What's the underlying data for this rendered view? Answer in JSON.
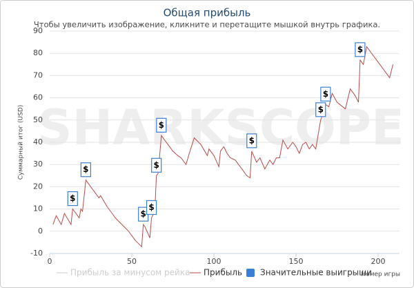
{
  "chart_data": {
    "type": "line",
    "title": "Общая прибыль",
    "subtitle": "Чтобы увеличить изображение, кликните и перетащите мышкой внутрь графика.",
    "watermark": "SHARKSCOPE",
    "y_label": "Суммарный итог (USD)",
    "x_label": "Номер игры",
    "xlim": [
      0,
      213
    ],
    "xticks": [
      0,
      50,
      100,
      150,
      200
    ],
    "ylim": [
      -10,
      90
    ],
    "yticks": [
      -10,
      0,
      10,
      20,
      30,
      40,
      50,
      60,
      70,
      80,
      90
    ],
    "grid": true,
    "series": [
      {
        "name": "Прибыль за минусом рейка",
        "color": "#cccccc",
        "hidden": true
      },
      {
        "name": "Прибыль",
        "color": "#b94a48",
        "x": [
          2,
          4,
          7,
          9,
          13,
          14,
          16,
          18,
          19,
          20,
          22,
          25,
          28,
          30,
          31,
          35,
          38,
          40,
          44,
          48,
          52,
          56,
          57,
          58,
          61,
          62,
          64,
          65,
          66,
          68,
          70,
          72,
          75,
          78,
          80,
          83,
          85,
          88,
          92,
          96,
          97,
          100,
          103,
          104,
          106,
          108,
          110,
          113,
          115,
          117,
          120,
          122,
          123,
          126,
          128,
          131,
          134,
          136,
          138,
          140,
          142,
          145,
          148,
          150,
          152,
          154,
          156,
          158,
          160,
          162,
          165,
          166,
          168,
          170,
          172,
          175,
          180,
          183,
          186,
          188,
          189,
          191,
          193,
          196,
          200,
          205,
          207,
          209
        ],
        "values": [
          3,
          7,
          3,
          8,
          3,
          10,
          8,
          6,
          10,
          9,
          23,
          20,
          17,
          15,
          16,
          11,
          8,
          6,
          3,
          0,
          -4,
          -7,
          3,
          2,
          -3,
          6,
          9,
          25,
          26,
          43,
          41,
          39,
          36,
          34,
          33,
          30,
          35,
          42,
          39,
          34,
          37,
          34,
          29,
          36,
          38,
          35,
          33,
          32,
          30,
          28,
          25,
          24,
          36,
          31,
          33,
          28,
          32,
          30,
          33,
          33,
          41,
          37,
          40,
          38,
          35,
          39,
          40,
          37,
          39,
          37,
          50,
          52,
          57,
          56,
          62,
          58,
          55,
          64,
          61,
          58,
          77,
          75,
          83,
          80,
          76,
          71,
          69,
          75
        ]
      },
      {
        "name": "Значительные выигрыши",
        "color": "#3a7fd5",
        "marker": "flag",
        "label": "$",
        "x": [
          14,
          22,
          57,
          62,
          65,
          68,
          123,
          165,
          168,
          189
        ],
        "values": [
          10,
          23,
          3,
          6,
          25,
          43,
          36,
          50,
          57,
          77
        ]
      }
    ]
  }
}
